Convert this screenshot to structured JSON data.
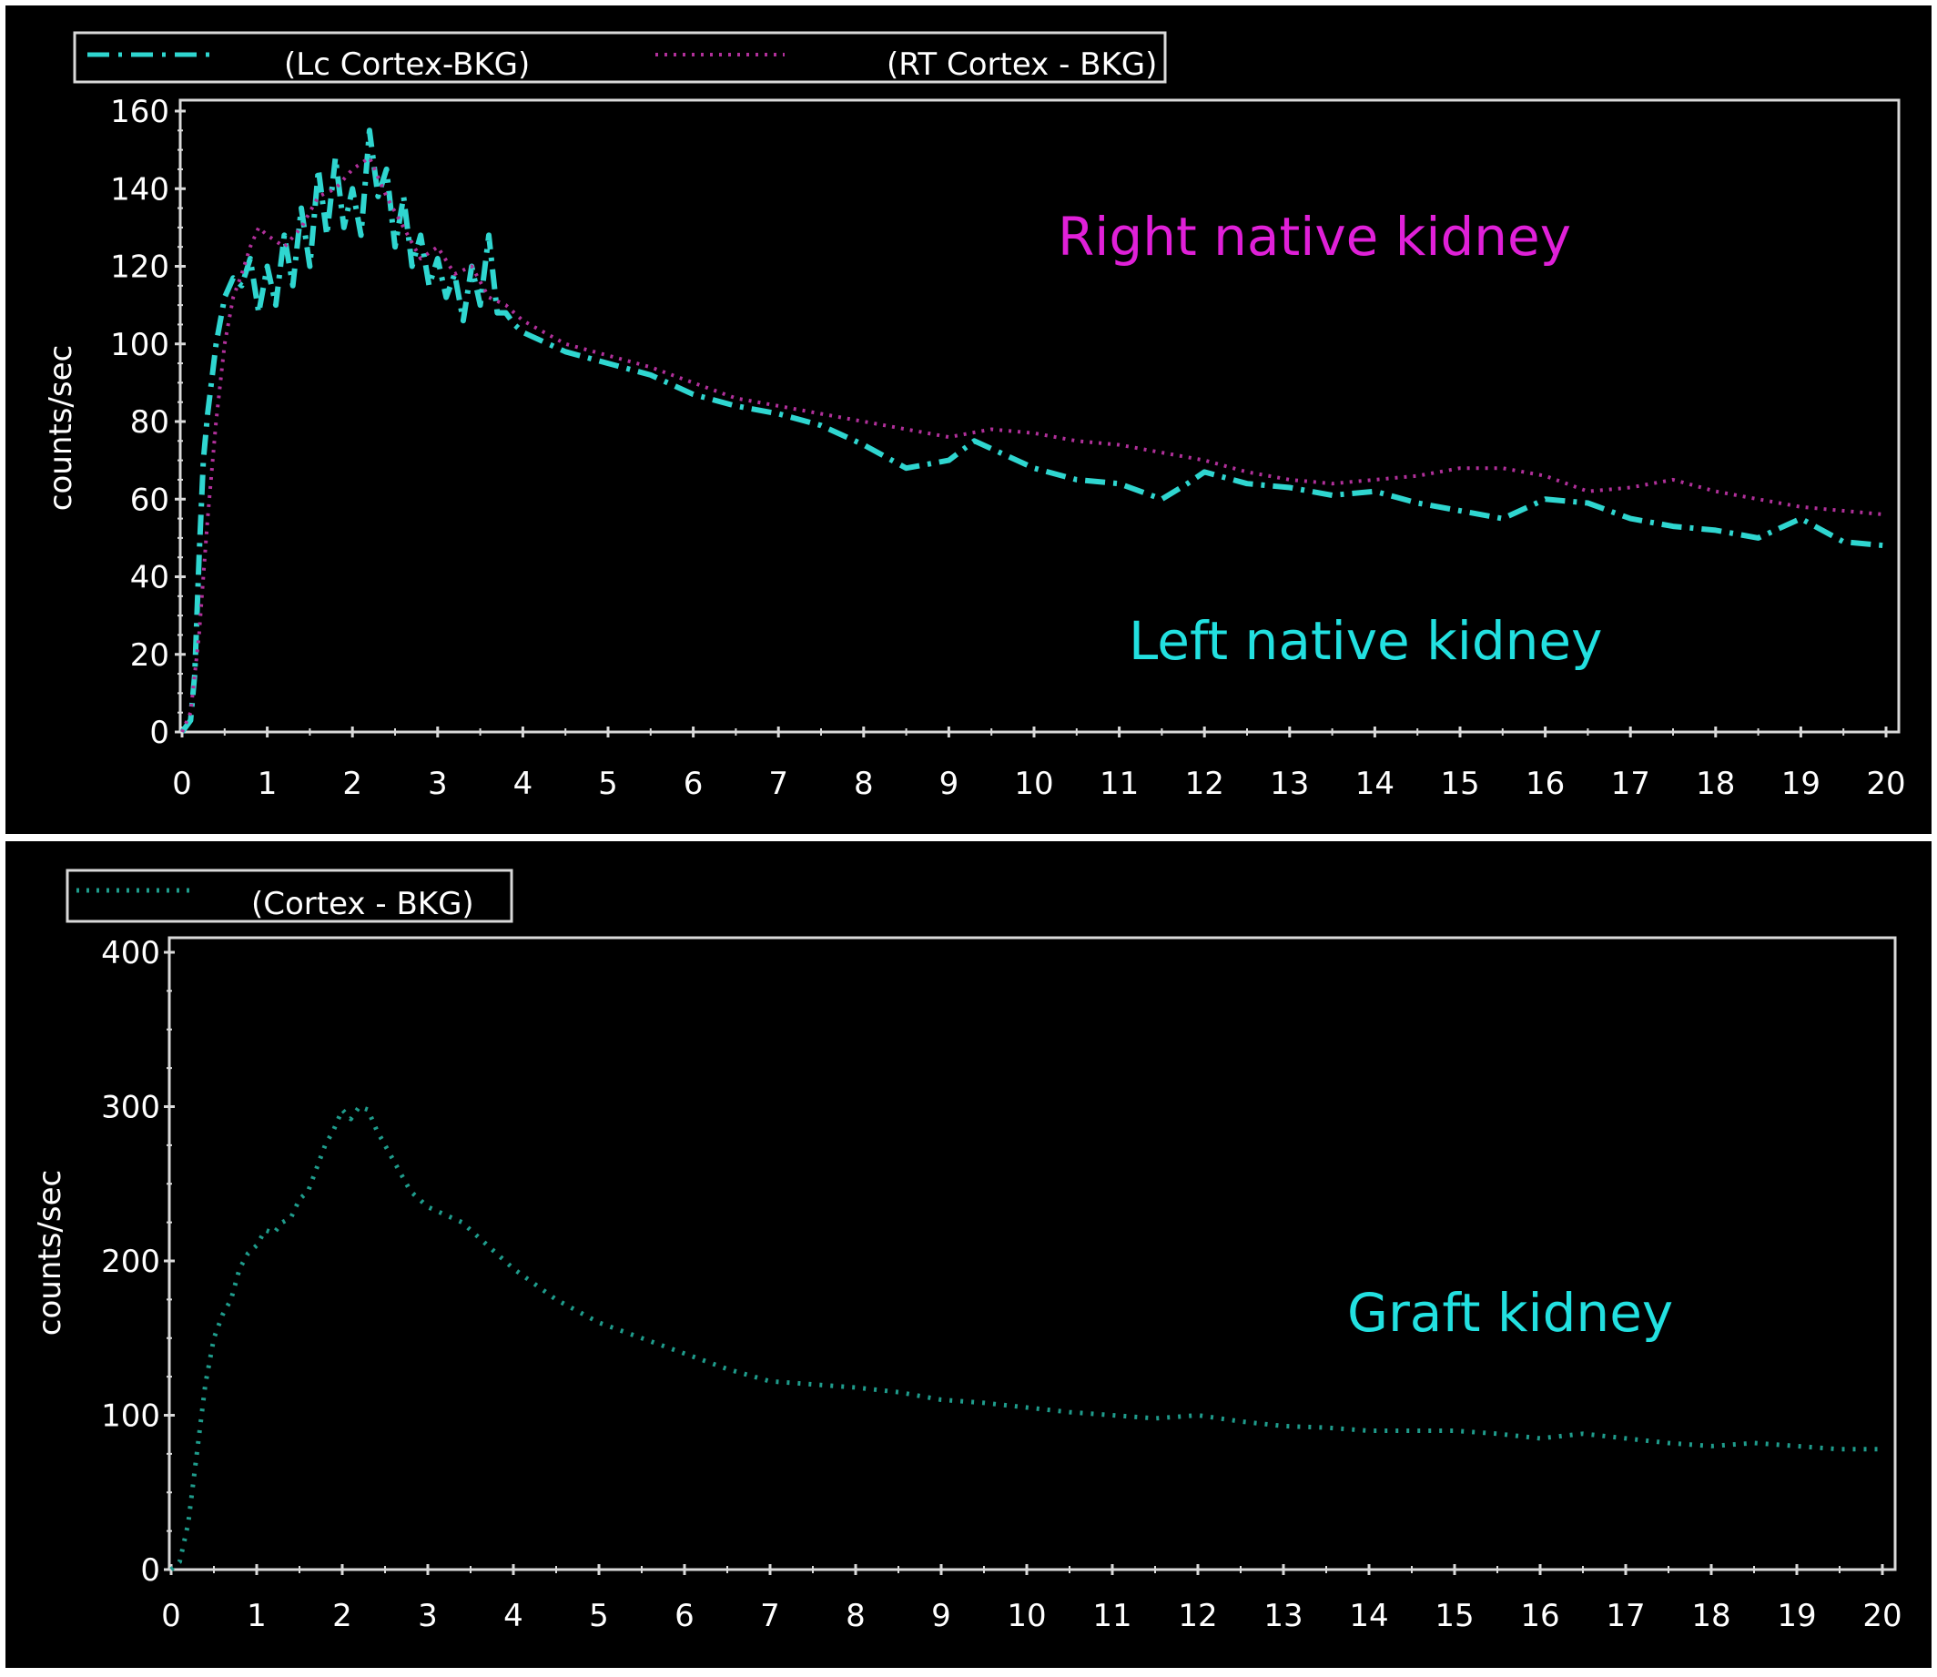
{
  "colors": {
    "background": "#000000",
    "frame": "#d9d9d9",
    "left_series": "#2fd6d0",
    "right_series": "#b0309a",
    "graft_series": "#1f9c8c",
    "right_label": "#e020d8",
    "cyan_label": "#22e0e0",
    "text": "#ffffff"
  },
  "chart_data": [
    {
      "type": "line",
      "title": "",
      "xlabel": "",
      "ylabel": "counts/sec",
      "xlim": [
        0,
        20
      ],
      "ylim": [
        0,
        160
      ],
      "xticks": [
        0,
        1,
        2,
        3,
        4,
        5,
        6,
        7,
        8,
        9,
        10,
        11,
        12,
        13,
        14,
        15,
        16,
        17,
        18,
        19,
        20
      ],
      "yticks": [
        0,
        20,
        40,
        60,
        80,
        100,
        120,
        140,
        160
      ],
      "grid": false,
      "legend_placement": "top",
      "legend": [
        "(Lc Cortex-BKG)",
        "(RT Cortex - BKG)"
      ],
      "annotations": [
        "Right native kidney",
        "Left native kidney"
      ],
      "series": [
        {
          "name": "(Lc Cortex-BKG)",
          "x": [
            0,
            0.1,
            0.15,
            0.2,
            0.25,
            0.3,
            0.4,
            0.5,
            0.6,
            0.7,
            0.8,
            0.9,
            1.0,
            1.1,
            1.2,
            1.3,
            1.4,
            1.5,
            1.6,
            1.7,
            1.8,
            1.9,
            2.0,
            2.1,
            2.2,
            2.3,
            2.4,
            2.5,
            2.6,
            2.7,
            2.8,
            2.9,
            3.0,
            3.1,
            3.2,
            3.3,
            3.4,
            3.5,
            3.6,
            3.7,
            3.8,
            3.9,
            4.0,
            4.5,
            5,
            5.5,
            6,
            6.5,
            7,
            7.5,
            8,
            8.5,
            9,
            9.3,
            9.7,
            10,
            10.5,
            11,
            11.5,
            11.8,
            12,
            12.5,
            13,
            13.5,
            14,
            14.5,
            15,
            15.5,
            16,
            16.5,
            17,
            17.5,
            18,
            18.5,
            19,
            19.5,
            20
          ],
          "y": [
            0,
            3,
            15,
            45,
            70,
            82,
            100,
            112,
            117,
            115,
            122,
            108,
            120,
            110,
            128,
            115,
            135,
            120,
            145,
            128,
            148,
            130,
            140,
            128,
            155,
            138,
            145,
            125,
            138,
            120,
            128,
            115,
            122,
            112,
            118,
            106,
            120,
            110,
            128,
            108,
            108,
            105,
            103,
            98,
            95,
            92,
            87,
            84,
            82,
            79,
            74,
            68,
            70,
            75,
            71,
            68,
            65,
            64,
            60,
            64,
            67,
            64,
            63,
            61,
            62,
            59,
            57,
            55,
            60,
            59,
            55,
            53,
            52,
            50,
            55,
            49,
            48
          ]
        },
        {
          "name": "(RT Cortex - BKG)",
          "x": [
            0,
            0.1,
            0.2,
            0.3,
            0.4,
            0.5,
            0.6,
            0.7,
            0.8,
            0.9,
            1.0,
            1.2,
            1.4,
            1.6,
            1.8,
            2.0,
            2.2,
            2.4,
            2.6,
            2.8,
            3.0,
            3.2,
            3.4,
            3.6,
            3.8,
            4.0,
            4.5,
            5,
            5.5,
            6,
            6.5,
            7,
            7.5,
            8,
            8.5,
            9,
            9.5,
            10,
            10.5,
            11,
            11.5,
            12,
            12.5,
            13,
            13.5,
            14,
            14.5,
            15,
            15.5,
            16,
            16.5,
            17,
            17.5,
            18,
            18.5,
            19,
            19.5,
            20
          ],
          "y": [
            0,
            5,
            25,
            55,
            80,
            100,
            112,
            118,
            125,
            130,
            128,
            125,
            130,
            138,
            140,
            145,
            148,
            138,
            130,
            122,
            125,
            118,
            120,
            112,
            110,
            106,
            100,
            97,
            94,
            90,
            86,
            84,
            82,
            80,
            78,
            76,
            78,
            77,
            75,
            74,
            72,
            70,
            67,
            65,
            64,
            65,
            66,
            68,
            68,
            66,
            62,
            63,
            65,
            62,
            60,
            58,
            57,
            56
          ]
        }
      ]
    },
    {
      "type": "line",
      "title": "",
      "xlabel": "",
      "ylabel": "counts/sec",
      "xlim": [
        0,
        20
      ],
      "ylim": [
        0,
        400
      ],
      "xticks": [
        0,
        1,
        2,
        3,
        4,
        5,
        6,
        7,
        8,
        9,
        10,
        11,
        12,
        13,
        14,
        15,
        16,
        17,
        18,
        19,
        20
      ],
      "yticks": [
        0,
        100,
        200,
        300,
        400
      ],
      "yticklabels": [
        "0",
        "100",
        "200",
        "300",
        "400"
      ],
      "grid": false,
      "legend_placement": "top-left",
      "legend": [
        "(Cortex - BKG)"
      ],
      "annotations": [
        "Graft kidney"
      ],
      "series": [
        {
          "name": "(Cortex - BKG)",
          "x": [
            0,
            0.1,
            0.2,
            0.3,
            0.4,
            0.5,
            0.6,
            0.7,
            0.8,
            0.9,
            1.0,
            1.1,
            1.2,
            1.3,
            1.4,
            1.5,
            1.6,
            1.7,
            1.8,
            1.9,
            2.0,
            2.1,
            2.2,
            2.3,
            2.4,
            2.5,
            2.6,
            2.7,
            2.8,
            2.9,
            3.0,
            3.2,
            3.4,
            3.6,
            3.8,
            4.0,
            4.5,
            5,
            5.5,
            6,
            6.5,
            7,
            7.5,
            8,
            8.5,
            9,
            9.5,
            10,
            10.5,
            11,
            11.5,
            12,
            12.5,
            13,
            13.5,
            14,
            14.5,
            15,
            15.5,
            16,
            16.5,
            17,
            17.5,
            18,
            18.5,
            19,
            19.5,
            20
          ],
          "y": [
            0,
            5,
            30,
            75,
            120,
            150,
            165,
            175,
            195,
            205,
            210,
            220,
            218,
            225,
            228,
            240,
            245,
            260,
            275,
            285,
            298,
            292,
            300,
            298,
            285,
            275,
            265,
            255,
            245,
            240,
            235,
            230,
            225,
            215,
            205,
            195,
            175,
            160,
            150,
            140,
            130,
            122,
            120,
            118,
            115,
            110,
            108,
            105,
            102,
            100,
            98,
            100,
            96,
            93,
            92,
            90,
            90,
            90,
            88,
            85,
            88,
            85,
            82,
            80,
            82,
            80,
            78,
            78
          ]
        }
      ]
    }
  ]
}
